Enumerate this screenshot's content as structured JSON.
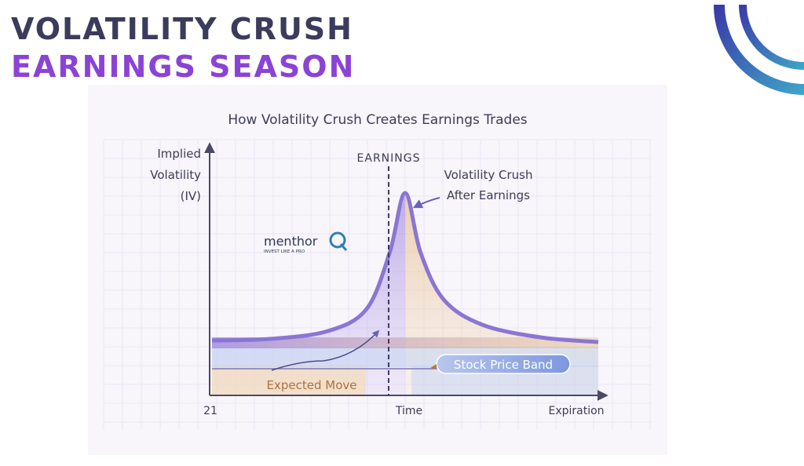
{
  "heading": {
    "line1": "VOLATILITY CRUSH",
    "line2": "EARNINGS SEASON"
  },
  "chart_data": {
    "type": "line",
    "title": "How Volatility Crush Creates Earnings Trades",
    "ylabel_lines": [
      "Implied",
      "Volatility",
      "(IV)"
    ],
    "xlabel": "Time",
    "x_tick_labels": {
      "start": "21",
      "end": "Expiration"
    },
    "event_label": "EARNINGS",
    "annotations": {
      "crush_lines": [
        "Volatility Crush",
        "After Earnings"
      ],
      "expected_move": "Expected Move",
      "stock_price_band": "Stock Price Band"
    },
    "logo": {
      "name": "menthor",
      "tagline": "INVEST LIKE A PRO"
    },
    "series": [
      {
        "x": [
          0,
          0.15,
          0.3,
          0.4,
          0.46,
          0.5,
          0.54,
          0.6,
          0.7,
          0.85,
          1.0
        ],
        "y": [
          0.04,
          0.05,
          0.1,
          0.24,
          0.6,
          0.98,
          0.6,
          0.3,
          0.14,
          0.06,
          0.03
        ]
      }
    ],
    "earnings_x": 0.5,
    "ylim": [
      0,
      1
    ],
    "colors": {
      "pre": "#8d6fd6",
      "post": "#e0a866",
      "line": "#8a76d2"
    }
  }
}
